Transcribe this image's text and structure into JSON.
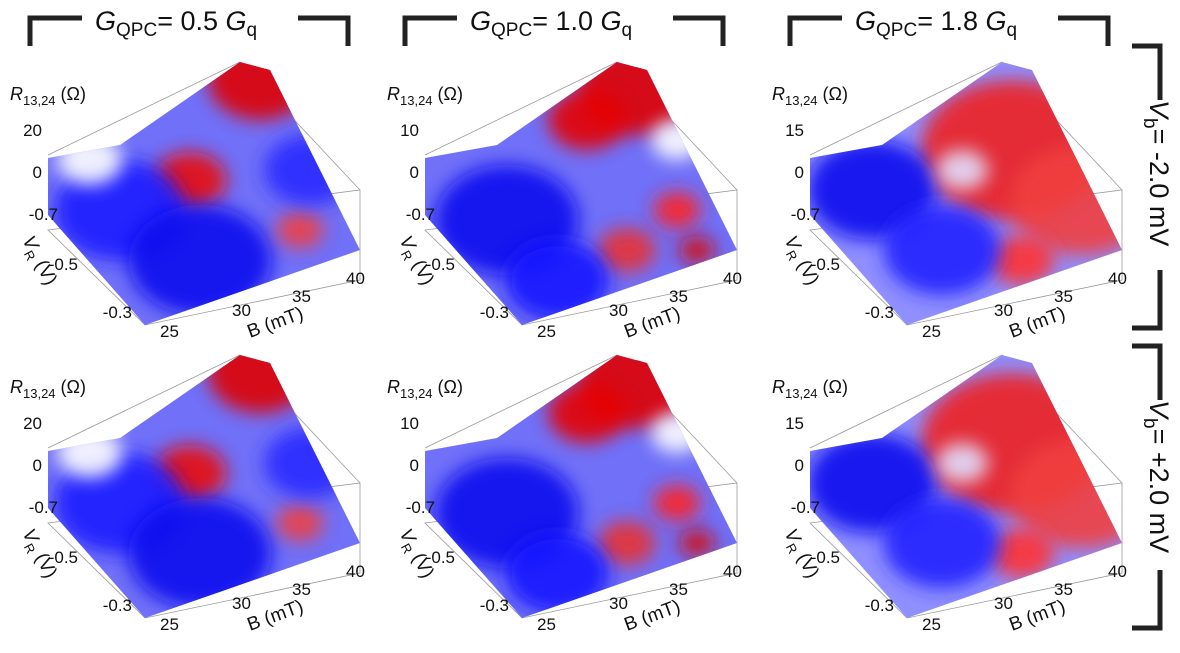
{
  "columns": [
    {
      "symbol": "G",
      "sub": "QPC",
      "value": "= 0.5 ",
      "unit": "G",
      "unit_sub": "q"
    },
    {
      "symbol": "G",
      "sub": "QPC",
      "value": "= 1.0 ",
      "unit": "G",
      "unit_sub": "q"
    },
    {
      "symbol": "G",
      "sub": "QPC",
      "value": "= 1.8 ",
      "unit": "G",
      "unit_sub": "q"
    }
  ],
  "rows": [
    {
      "symbol": "V",
      "sub": "b",
      "value": "= -2.0 mV"
    },
    {
      "symbol": "V",
      "sub": "b",
      "value": "= +2.0 mV"
    }
  ],
  "panels": [
    [
      {
        "zlabel": {
          "symbol": "R",
          "sub": "13,24",
          "unit": " (Ω)"
        },
        "zticks": [
          "20",
          "0"
        ],
        "yticks": [
          "-0.7",
          "-0.5",
          "-0.3"
        ],
        "ylabel": {
          "symbol": "V",
          "sub": "R",
          "unit": " (V)"
        },
        "xticks": [
          "25",
          "30",
          "35",
          "40"
        ],
        "xlabel": "B (mT)"
      },
      {
        "zlabel": {
          "symbol": "R",
          "sub": "13,24",
          "unit": " (Ω)"
        },
        "zticks": [
          "10",
          "0"
        ],
        "yticks": [
          "-0.7",
          "-0.5",
          "-0.3"
        ],
        "ylabel": {
          "symbol": "V",
          "sub": "R",
          "unit": " (V)"
        },
        "xticks": [
          "25",
          "30",
          "35",
          "40"
        ],
        "xlabel": "B (mT)"
      },
      {
        "zlabel": {
          "symbol": "R",
          "sub": "13,24",
          "unit": " (Ω)"
        },
        "zticks": [
          "15",
          "0"
        ],
        "yticks": [
          "-0.7",
          "-0.5",
          "-0.3"
        ],
        "ylabel": {
          "symbol": "V",
          "sub": "R",
          "unit": " (V)"
        },
        "xticks": [
          "25",
          "30",
          "35",
          "40"
        ],
        "xlabel": "B (mT)"
      }
    ],
    [
      {
        "zlabel": {
          "symbol": "R",
          "sub": "13,24",
          "unit": " (Ω)"
        },
        "zticks": [
          "20",
          "0"
        ],
        "yticks": [
          "-0.7",
          "-0.5",
          "-0.3"
        ],
        "ylabel": {
          "symbol": "V",
          "sub": "R",
          "unit": " (V)"
        },
        "xticks": [
          "25",
          "30",
          "35",
          "40"
        ],
        "xlabel": "B (mT)"
      },
      {
        "zlabel": {
          "symbol": "R",
          "sub": "13,24",
          "unit": " (Ω)"
        },
        "zticks": [
          "10",
          "0"
        ],
        "yticks": [
          "-0.7",
          "-0.5",
          "-0.3"
        ],
        "ylabel": {
          "symbol": "V",
          "sub": "R",
          "unit": " (V)"
        },
        "xticks": [
          "25",
          "30",
          "35",
          "40"
        ],
        "xlabel": "B (mT)"
      },
      {
        "zlabel": {
          "symbol": "R",
          "sub": "13,24",
          "unit": " (Ω)"
        },
        "zticks": [
          "15",
          "0"
        ],
        "yticks": [
          "-0.7",
          "-0.5",
          "-0.3"
        ],
        "ylabel": {
          "symbol": "V",
          "sub": "R",
          "unit": " (V)"
        },
        "xticks": [
          "25",
          "30",
          "35",
          "40"
        ],
        "xlabel": "B (mT)"
      }
    ]
  ]
}
